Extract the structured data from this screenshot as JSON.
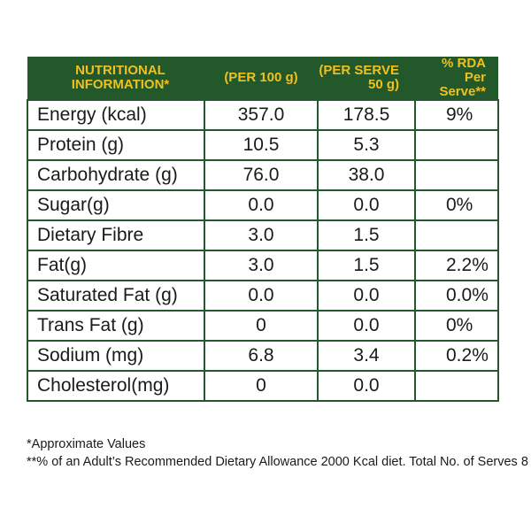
{
  "header": {
    "name_line1": "NUTRITIONAL",
    "name_line2": "INFORMATION*",
    "per100": "(PER 100 g)",
    "perserve_line1": "(PER SERVE",
    "perserve_line2": "50 g)",
    "rda_line1": "% RDA",
    "rda_line2": "Per Serve**"
  },
  "rows": [
    {
      "name": "Energy (kcal)",
      "per100": "357.0",
      "perserve": "178.5",
      "rda": "9%"
    },
    {
      "name": "Protein (g)",
      "per100": "10.5",
      "perserve": "5.3",
      "rda": ""
    },
    {
      "name": "Carbohydrate (g)",
      "per100": "76.0",
      "perserve": "38.0",
      "rda": ""
    },
    {
      "name": "Sugar(g)",
      "per100": "0.0",
      "perserve": "0.0",
      "rda": "0%"
    },
    {
      "name": "Dietary Fibre",
      "per100": "3.0",
      "perserve": "1.5",
      "rda": ""
    },
    {
      "name": "Fat(g)",
      "per100": "3.0",
      "perserve": "1.5",
      "rda": "2.2%"
    },
    {
      "name": "Saturated Fat (g)",
      "per100": "0.0",
      "perserve": "0.0",
      "rda": "0.0%"
    },
    {
      "name": "Trans Fat (g)",
      "per100": "0",
      "perserve": "0.0",
      "rda": "0%"
    },
    {
      "name": "Sodium (mg)",
      "per100": "6.8",
      "perserve": "3.4",
      "rda": "0.2%"
    },
    {
      "name": "Cholesterol(mg)",
      "per100": "0",
      "perserve": "0.0",
      "rda": ""
    }
  ],
  "footnotes": {
    "note1": "*Approximate Values",
    "note2": "**% of an Adult’s Recommended Dietary Allowance 2000 Kcal diet. Total No. of Serves 8"
  },
  "colors": {
    "header_bg": "#23582a",
    "header_text": "#f0c020",
    "border": "#23582a"
  }
}
